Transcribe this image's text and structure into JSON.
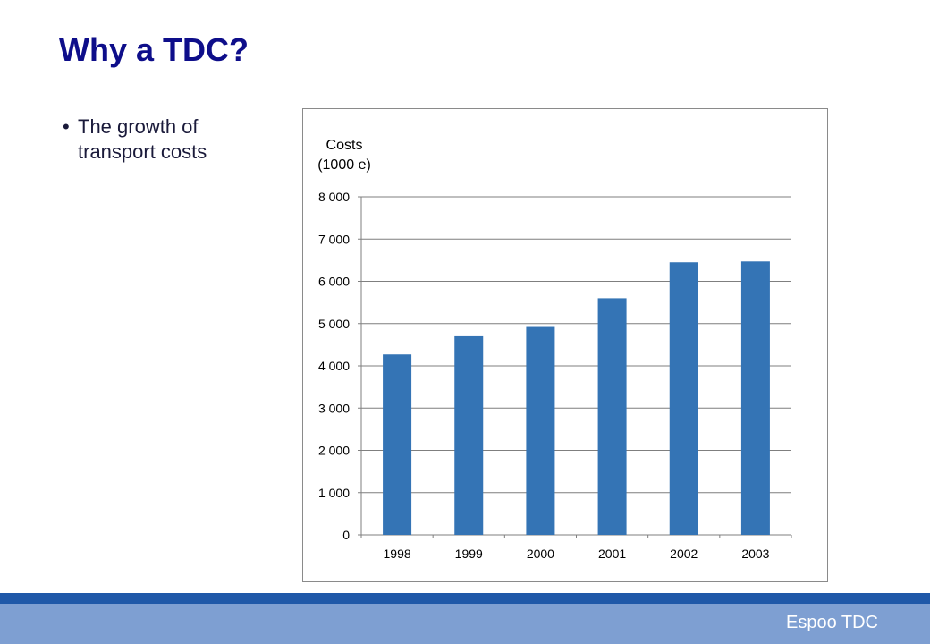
{
  "slide": {
    "title": "Why a TDC?",
    "bullets": [
      "The growth of transport costs"
    ],
    "bullet_symbol": "•",
    "footer": "Espoo TDC"
  },
  "colors": {
    "title": "#0e0e8a",
    "bar": "#3474b5",
    "footer_dark": "#1f58a8",
    "footer_band": "#7e9fd2"
  },
  "chart_data": {
    "type": "bar",
    "title": "",
    "ylabel": "Costs (1000 e)",
    "ylabel_lines": [
      "Costs",
      "(1000 e)"
    ],
    "xlabel": "",
    "categories": [
      "1998",
      "1999",
      "2000",
      "2001",
      "2002",
      "2003"
    ],
    "values": [
      4270,
      4700,
      4920,
      5600,
      6450,
      6470
    ],
    "ylim": [
      0,
      8000
    ],
    "yticks": [
      0,
      1000,
      2000,
      3000,
      4000,
      5000,
      6000,
      7000,
      8000
    ],
    "ytick_labels": [
      "0",
      "1 000",
      "2 000",
      "3 000",
      "4 000",
      "5 000",
      "6 000",
      "7 000",
      "8 000"
    ],
    "grid": true,
    "legend": "none"
  }
}
